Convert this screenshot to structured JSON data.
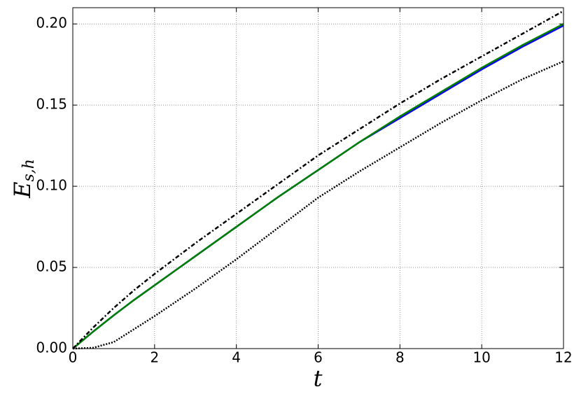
{
  "chart_data": {
    "type": "line",
    "xlabel": "t",
    "ylabel": "E",
    "ylabel_sub": "s,h",
    "x": [
      0,
      0.5,
      1,
      1.5,
      2,
      3,
      4,
      5,
      6,
      7,
      8,
      9,
      10,
      11,
      12
    ],
    "series": [
      {
        "color": "#0000ff",
        "linestyle": "solid",
        "values": [
          0,
          0.0105,
          0.0205,
          0.03,
          0.039,
          0.057,
          0.075,
          0.093,
          0.11,
          0.127,
          0.142,
          0.157,
          0.172,
          0.186,
          0.199
        ]
      },
      {
        "color": "#007f00",
        "linestyle": "solid",
        "values": [
          0,
          0.0105,
          0.0205,
          0.03,
          0.039,
          0.057,
          0.075,
          0.093,
          0.11,
          0.127,
          0.143,
          0.158,
          0.173,
          0.187,
          0.2
        ]
      },
      {
        "color": "#000000",
        "linestyle": "dashdot",
        "values": [
          0,
          0.013,
          0.025,
          0.036,
          0.046,
          0.065,
          0.083,
          0.101,
          0.119,
          0.135,
          0.151,
          0.166,
          0.18,
          0.194,
          0.208
        ]
      },
      {
        "color": "#000000",
        "linestyle": "dotted",
        "values": [
          0,
          0.0005,
          0.004,
          0.012,
          0.02,
          0.037,
          0.055,
          0.074,
          0.093,
          0.109,
          0.124,
          0.139,
          0.153,
          0.166,
          0.177
        ]
      }
    ],
    "xlim": [
      0,
      12
    ],
    "xticks": [
      0,
      2,
      4,
      6,
      8,
      10,
      12
    ],
    "ylim": [
      0,
      0.21
    ],
    "yticks": [
      {
        "value": 0,
        "label": "0.00"
      },
      {
        "value": 0.05,
        "label": "0.05"
      },
      {
        "value": 0.1,
        "label": "0.10"
      },
      {
        "value": 0.15,
        "label": "0.15"
      },
      {
        "value": 0.2,
        "label": "0.20"
      }
    ],
    "grid": true
  }
}
